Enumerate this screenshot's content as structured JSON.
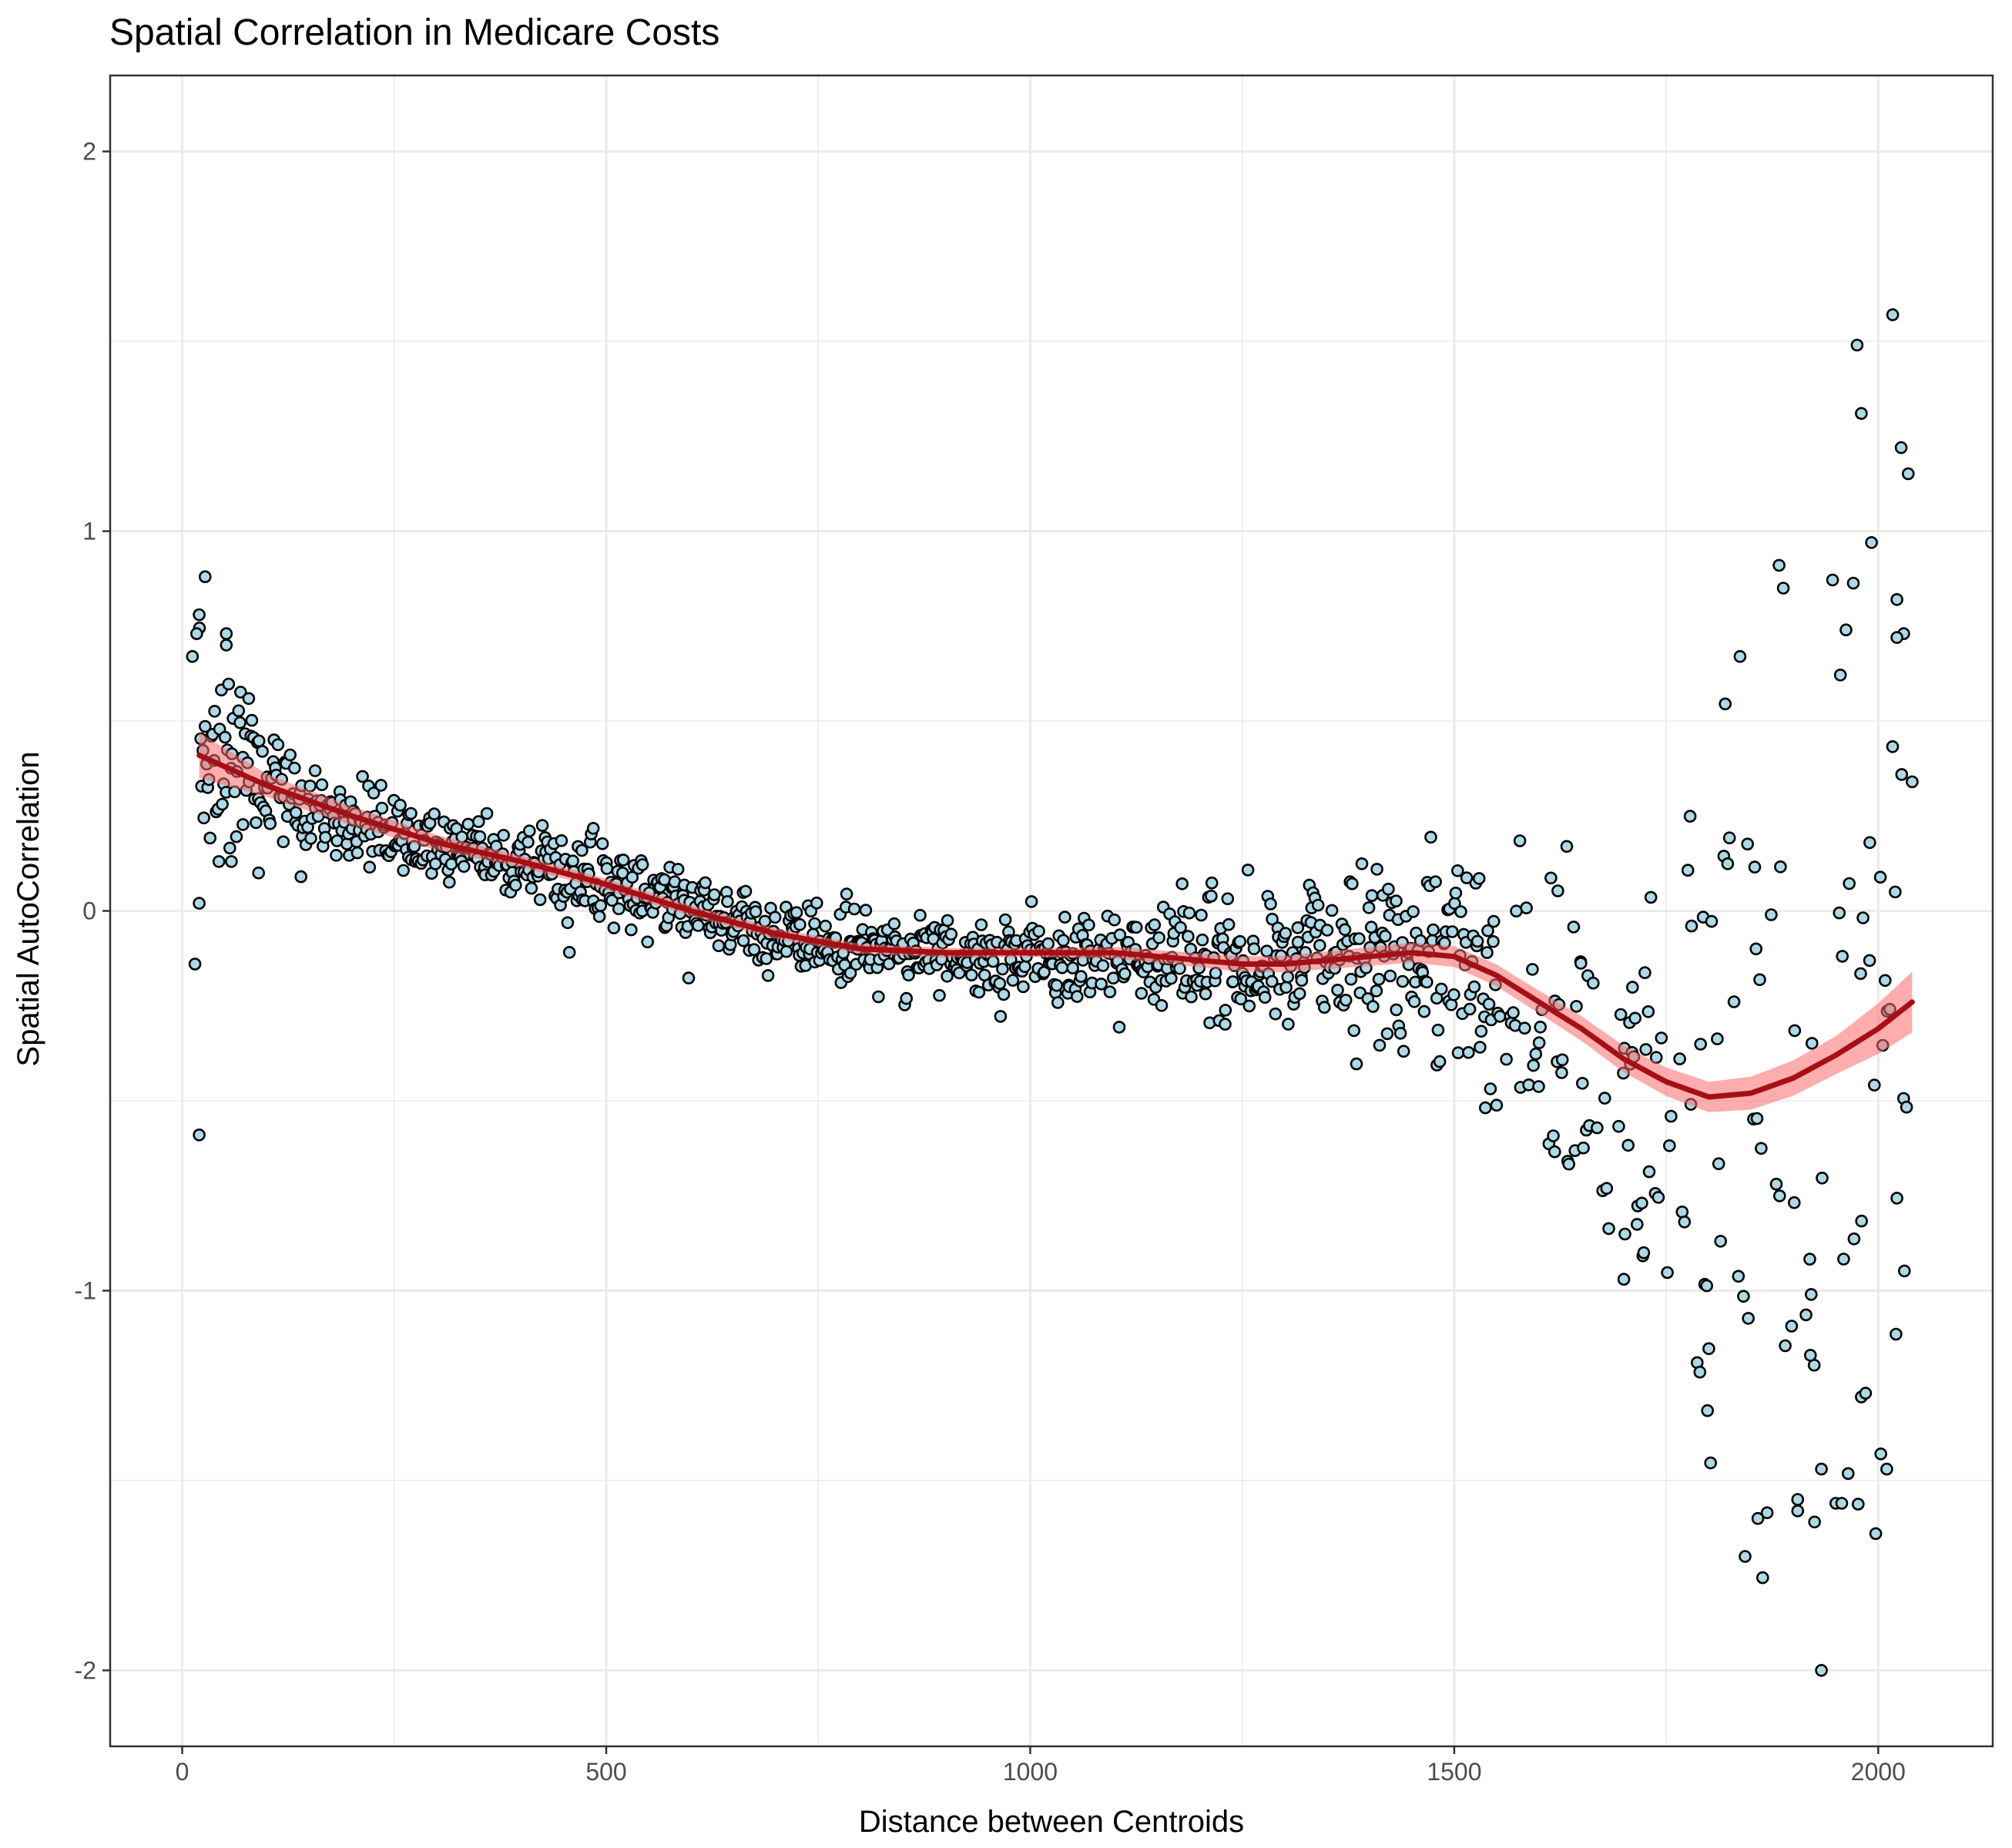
{
  "chart_data": {
    "type": "scatter",
    "title": "Spatial Correlation in Medicare Costs",
    "xlabel": "Distance between Centroids",
    "ylabel": "Spatial AutoCorrelation",
    "xlim": [
      -85,
      2135
    ],
    "ylim": [
      -2.2,
      2.2
    ],
    "x_ticks": [
      0,
      500,
      1000,
      1500,
      2000
    ],
    "x_tick_labels": [
      "0",
      "500",
      "1000",
      "1500",
      "2000"
    ],
    "y_ticks": [
      -2,
      -1,
      0,
      1,
      2
    ],
    "y_tick_labels": [
      "-2",
      "-1",
      "0",
      "1",
      "2"
    ],
    "x_minor": [
      250,
      750,
      1250,
      1750
    ],
    "y_minor": [
      -1.5,
      -0.5,
      0.5,
      1.5
    ],
    "grid": true,
    "colors": {
      "point_fill": "#add8e6",
      "point_stroke": "#000000",
      "smooth_line": "#a50f15",
      "ribbon": "#fb6a6a",
      "grid": "#ebebeb",
      "panel_border": "#333333"
    },
    "point_density_profile": [
      [
        20,
        0.42,
        0.18
      ],
      [
        100,
        0.32,
        0.07
      ],
      [
        200,
        0.23,
        0.05
      ],
      [
        300,
        0.18,
        0.05
      ],
      [
        400,
        0.13,
        0.05
      ],
      [
        500,
        0.06,
        0.05
      ],
      [
        600,
        0.0,
        0.05
      ],
      [
        700,
        -0.07,
        0.05
      ],
      [
        800,
        -0.1,
        0.05
      ],
      [
        900,
        -0.11,
        0.05
      ],
      [
        1000,
        -0.11,
        0.05
      ],
      [
        1100,
        -0.12,
        0.06
      ],
      [
        1200,
        -0.13,
        0.07
      ],
      [
        1300,
        -0.13,
        0.08
      ],
      [
        1400,
        -0.12,
        0.1
      ],
      [
        1500,
        -0.13,
        0.14
      ],
      [
        1600,
        -0.27,
        0.18
      ],
      [
        1700,
        -0.43,
        0.25
      ],
      [
        1800,
        -0.49,
        0.5
      ],
      [
        1900,
        -0.42,
        0.6
      ],
      [
        2000,
        -0.3,
        0.7
      ],
      [
        2040,
        -0.25,
        0.7
      ]
    ],
    "outliers": [
      [
        12,
        0.67
      ],
      [
        17,
        0.73
      ],
      [
        20,
        0.78
      ],
      [
        27,
        0.88
      ],
      [
        15,
        -0.14
      ],
      [
        20,
        0.02
      ],
      [
        20,
        -0.59
      ],
      [
        52,
        0.73
      ],
      [
        52,
        0.7
      ],
      [
        58,
        0.13
      ],
      [
        90,
        0.1
      ],
      [
        140,
        0.09
      ],
      [
        1700,
        -0.97
      ],
      [
        1837,
        0.67
      ],
      [
        1843,
        -1.7
      ],
      [
        1858,
        -1.6
      ],
      [
        1883,
        0.91
      ],
      [
        1888,
        0.85
      ],
      [
        1905,
        -1.58
      ],
      [
        1905,
        -1.55
      ],
      [
        1920,
        -1.17
      ],
      [
        1933,
        -1.47
      ],
      [
        1933,
        -2.0
      ],
      [
        1950,
        -1.56
      ],
      [
        1957,
        -1.56
      ],
      [
        1962,
        0.74
      ],
      [
        1975,
        1.49
      ],
      [
        1980,
        1.31
      ],
      [
        1980,
        -1.28
      ],
      [
        1985,
        -1.27
      ],
      [
        1992,
        0.97
      ],
      [
        1997,
        -1.64
      ],
      [
        2003,
        -1.43
      ],
      [
        2010,
        -1.47
      ],
      [
        2017,
        1.57
      ],
      [
        2022,
        0.82
      ],
      [
        2027,
        1.22
      ],
      [
        2030,
        0.73
      ],
      [
        2022,
        0.72
      ],
      [
        2040,
        0.34
      ],
      [
        2020,
        0.05
      ],
      [
        1990,
        0.18
      ]
    ],
    "smooth_curve": [
      [
        20,
        0.41
      ],
      [
        100,
        0.33
      ],
      [
        200,
        0.25
      ],
      [
        300,
        0.18
      ],
      [
        400,
        0.13
      ],
      [
        500,
        0.07
      ],
      [
        600,
        0.0
      ],
      [
        700,
        -0.06
      ],
      [
        800,
        -0.1
      ],
      [
        900,
        -0.11
      ],
      [
        1000,
        -0.11
      ],
      [
        1100,
        -0.11
      ],
      [
        1200,
        -0.13
      ],
      [
        1250,
        -0.14
      ],
      [
        1300,
        -0.14
      ],
      [
        1400,
        -0.12
      ],
      [
        1450,
        -0.11
      ],
      [
        1500,
        -0.12
      ],
      [
        1550,
        -0.17
      ],
      [
        1600,
        -0.24
      ],
      [
        1650,
        -0.31
      ],
      [
        1700,
        -0.39
      ],
      [
        1750,
        -0.45
      ],
      [
        1800,
        -0.49
      ],
      [
        1850,
        -0.48
      ],
      [
        1900,
        -0.44
      ],
      [
        1950,
        -0.38
      ],
      [
        2000,
        -0.31
      ],
      [
        2040,
        -0.24
      ]
    ],
    "ribbon_halfwidth": [
      [
        20,
        0.06
      ],
      [
        100,
        0.03
      ],
      [
        400,
        0.015
      ],
      [
        1000,
        0.012
      ],
      [
        1400,
        0.025
      ],
      [
        1600,
        0.03
      ],
      [
        1800,
        0.04
      ],
      [
        1950,
        0.05
      ],
      [
        2040,
        0.08
      ]
    ]
  }
}
